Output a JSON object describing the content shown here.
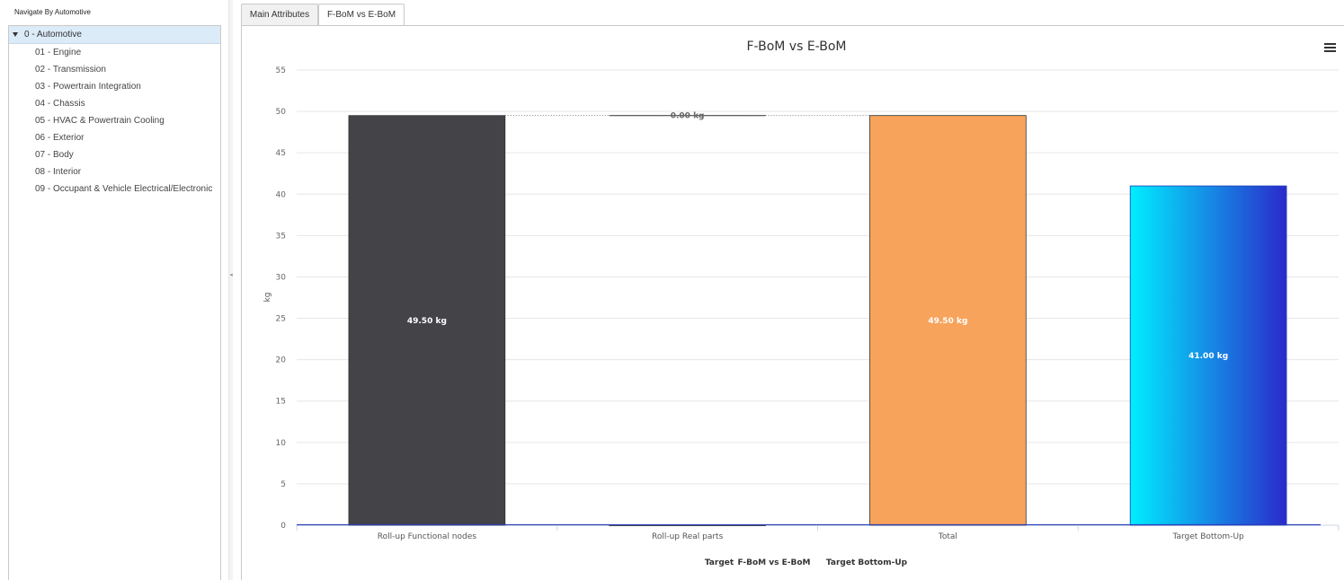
{
  "nav": {
    "title": "Navigate By Automotive",
    "root": "0 - Automotive",
    "items": [
      "01 - Engine",
      "02 - Transmission",
      "03 - Powertrain Integration",
      "04 - Chassis",
      "05 - HVAC & Powertrain Cooling",
      "06 - Exterior",
      "07 - Body",
      "08 - Interior",
      "09 - Occupant & Vehicle Electrical/Electronic"
    ]
  },
  "tabs": [
    {
      "label": "Main Attributes",
      "active": false
    },
    {
      "label": "F-BoM vs E-BoM",
      "active": true
    }
  ],
  "chart_data": {
    "type": "bar",
    "title": "F-BoM vs E-BoM",
    "ylabel": "kg",
    "xlabel": "",
    "ylim": [
      0,
      55
    ],
    "yticks": [
      0,
      5,
      10,
      15,
      20,
      25,
      30,
      35,
      40,
      45,
      50,
      55
    ],
    "categories": [
      "Roll-up Functional nodes",
      "Roll-up Real parts",
      "Total",
      "Target Bottom-Up"
    ],
    "values": [
      49.5,
      0.0,
      49.5,
      41.0
    ],
    "value_labels": [
      "49.50 kg",
      "0.00 kg",
      "49.50 kg",
      "41.00 kg"
    ],
    "bar_colors": [
      "#434348",
      "#ffffff",
      "#f7a35c",
      "#00e5ff"
    ],
    "legend": [
      "Target",
      "F-BoM vs E-BoM",
      "Target Bottom-Up"
    ],
    "legend_position": "bottom-center",
    "grid": true
  }
}
